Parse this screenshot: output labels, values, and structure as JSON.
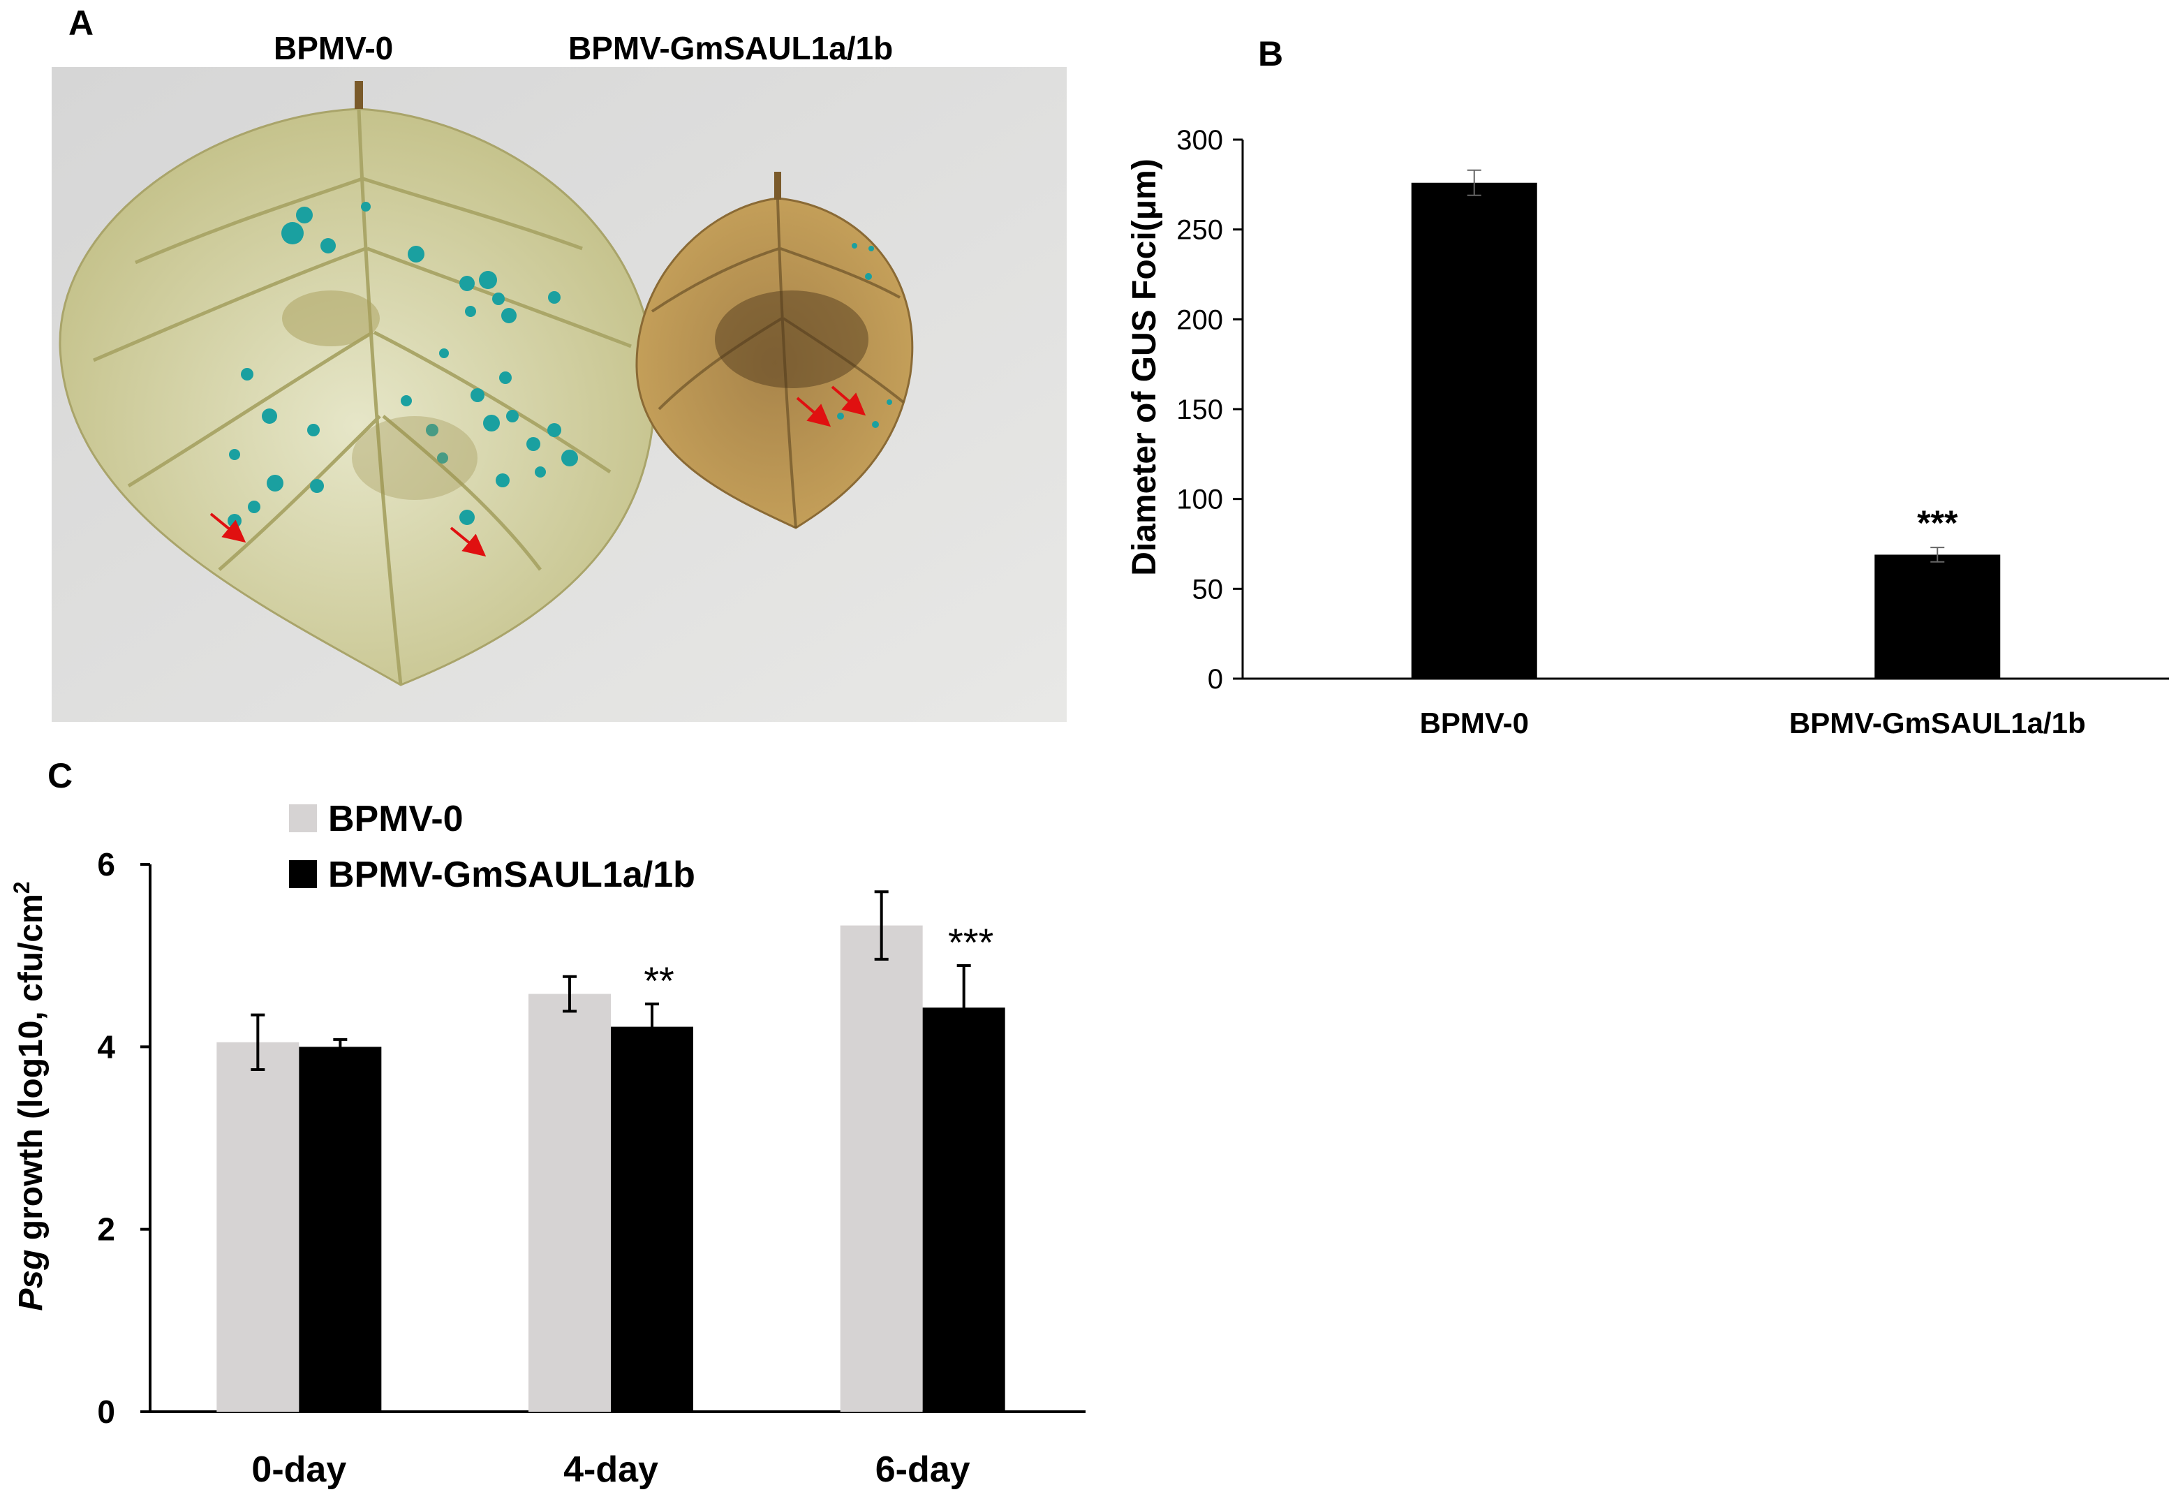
{
  "panels": {
    "a": {
      "letter": "A",
      "labels": [
        "BPMV-0",
        "BPMV-GmSAUL1a/1b"
      ]
    },
    "b": {
      "letter": "B"
    },
    "c": {
      "letter": "C"
    }
  },
  "colors": {
    "black_bar": "#000000",
    "gray_bar": "#d6d3d3",
    "arrow": "#e01010",
    "gus": "#1aa0a0"
  },
  "chart_data": [
    {
      "type": "bar",
      "panel": "B",
      "categories": [
        "BPMV-0",
        "BPMV-GmSAUL1a/1b"
      ],
      "values": [
        276,
        69
      ],
      "errors": [
        7,
        4
      ],
      "significance": [
        "",
        "***"
      ],
      "ylabel": "Diameter of GUS Foci(μm)",
      "ylim": [
        0,
        300
      ],
      "yticks": [
        0,
        50,
        100,
        150,
        200,
        250,
        300
      ]
    },
    {
      "type": "bar",
      "panel": "C",
      "categories": [
        "0-day",
        "4-day",
        "6-day"
      ],
      "series": [
        {
          "name": "BPMV-0",
          "values": [
            4.05,
            4.58,
            5.33
          ],
          "errors": [
            0.3,
            0.19,
            0.37
          ],
          "color": "#d6d3d3"
        },
        {
          "name": "BPMV-GmSAUL1a/1b",
          "values": [
            4.0,
            4.22,
            4.43
          ],
          "errors": [
            0.08,
            0.25,
            0.46
          ],
          "color": "#000000"
        }
      ],
      "significance": [
        "",
        "**",
        "***"
      ],
      "ylabel_italic": "Psg",
      "ylabel": " growth (log10, cfu/cm",
      "ylabel_sup": "2",
      "ylim": [
        0,
        6
      ],
      "yticks": [
        0,
        2,
        4,
        6
      ],
      "legend": "top-left"
    }
  ]
}
